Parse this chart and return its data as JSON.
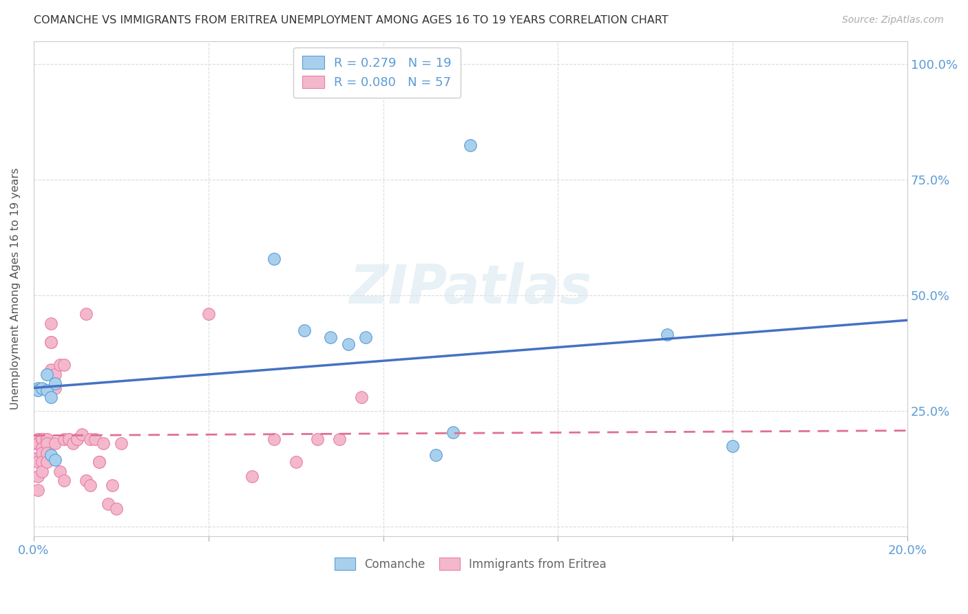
{
  "title": "COMANCHE VS IMMIGRANTS FROM ERITREA UNEMPLOYMENT AMONG AGES 16 TO 19 YEARS CORRELATION CHART",
  "source": "Source: ZipAtlas.com",
  "ylabel": "Unemployment Among Ages 16 to 19 years",
  "legend1_label": "R = 0.279   N = 19",
  "legend2_label": "R = 0.080   N = 57",
  "comanche_color": "#a8d0ed",
  "eritrea_color": "#f4b8cc",
  "comanche_edge_color": "#5b9bd5",
  "eritrea_edge_color": "#e87da8",
  "comanche_line_color": "#4472c4",
  "eritrea_line_color": "#e07090",
  "background_color": "#ffffff",
  "watermark": "ZIPatlas",
  "comanche_x": [
    0.001,
    0.001,
    0.002,
    0.003,
    0.003,
    0.004,
    0.004,
    0.005,
    0.005,
    0.055,
    0.062,
    0.068,
    0.072,
    0.076,
    0.092,
    0.096,
    0.1,
    0.145,
    0.16
  ],
  "comanche_y": [
    0.3,
    0.295,
    0.3,
    0.295,
    0.33,
    0.28,
    0.155,
    0.145,
    0.31,
    0.58,
    0.425,
    0.41,
    0.395,
    0.41,
    0.155,
    0.205,
    0.825,
    0.415,
    0.175
  ],
  "eritrea_x": [
    0.0005,
    0.001,
    0.001,
    0.001,
    0.001,
    0.001,
    0.001,
    0.001,
    0.002,
    0.002,
    0.002,
    0.002,
    0.002,
    0.002,
    0.002,
    0.003,
    0.003,
    0.003,
    0.003,
    0.003,
    0.004,
    0.004,
    0.004,
    0.004,
    0.005,
    0.005,
    0.005,
    0.006,
    0.006,
    0.007,
    0.007,
    0.007,
    0.008,
    0.008,
    0.009,
    0.01,
    0.01,
    0.011,
    0.012,
    0.012,
    0.013,
    0.013,
    0.014,
    0.015,
    0.015,
    0.016,
    0.017,
    0.018,
    0.019,
    0.02,
    0.04,
    0.05,
    0.055,
    0.06,
    0.065,
    0.07,
    0.075
  ],
  "eritrea_y": [
    0.18,
    0.19,
    0.19,
    0.18,
    0.15,
    0.14,
    0.11,
    0.08,
    0.19,
    0.19,
    0.19,
    0.17,
    0.16,
    0.14,
    0.12,
    0.19,
    0.19,
    0.18,
    0.16,
    0.14,
    0.44,
    0.4,
    0.4,
    0.34,
    0.33,
    0.3,
    0.18,
    0.35,
    0.12,
    0.19,
    0.35,
    0.1,
    0.19,
    0.19,
    0.18,
    0.19,
    0.19,
    0.2,
    0.46,
    0.1,
    0.19,
    0.09,
    0.19,
    0.14,
    0.14,
    0.18,
    0.05,
    0.09,
    0.04,
    0.18,
    0.46,
    0.11,
    0.19,
    0.14,
    0.19,
    0.19,
    0.28
  ],
  "xlim": [
    0.0,
    0.2
  ],
  "ylim": [
    -0.02,
    1.05
  ],
  "xticks": [
    0.0,
    0.04,
    0.08,
    0.12,
    0.16,
    0.2
  ],
  "yticks": [
    0.0,
    0.25,
    0.5,
    0.75,
    1.0
  ],
  "tick_color": "#5b9bd5",
  "grid_color": "#d8d8d8"
}
